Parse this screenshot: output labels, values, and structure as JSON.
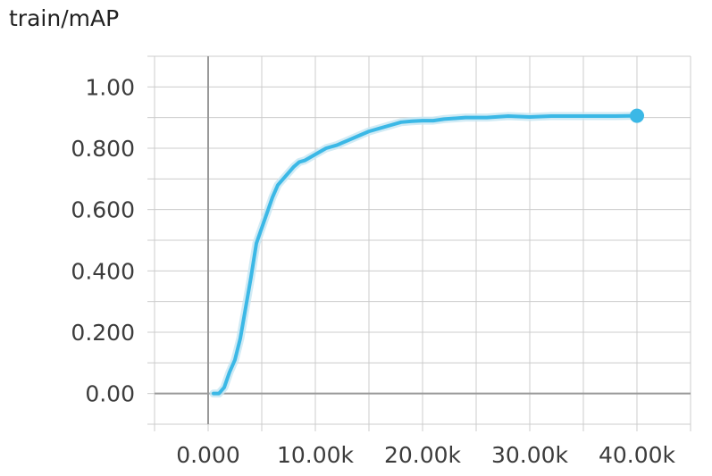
{
  "chart_data": {
    "type": "line",
    "title": "train/mAP",
    "xlabel": "",
    "ylabel": "",
    "xlim": [
      -5000,
      45000
    ],
    "ylim": [
      -0.1,
      1.1
    ],
    "x_ticks": [
      0,
      10000,
      20000,
      30000,
      40000
    ],
    "x_tick_labels": [
      "0.000",
      "10.00k",
      "20.00k",
      "30.00k",
      "40.00k"
    ],
    "y_ticks": [
      0,
      0.2,
      0.4,
      0.6,
      0.8,
      1.0
    ],
    "y_tick_labels": [
      "0.00",
      "0.200",
      "0.400",
      "0.600",
      "0.800",
      "1.00"
    ],
    "grid": true,
    "colors": {
      "line": "#3bb8e6",
      "raw": "#c6e6f2",
      "grid": "#cccccc",
      "axis": "#999999"
    },
    "series": [
      {
        "x": [
          500,
          1000,
          1500,
          2000,
          2500,
          3000,
          3500,
          4000,
          4500,
          5000,
          5500,
          6000,
          6500,
          7000,
          7500,
          8000,
          8500,
          9000,
          10000,
          11000,
          12000,
          13000,
          14000,
          15000,
          16000,
          17000,
          18000,
          19000,
          20000,
          21000,
          22000,
          24000,
          26000,
          28000,
          30000,
          32000,
          34000,
          36000,
          38000,
          40000
        ],
        "y": [
          0.0,
          0.0,
          0.02,
          0.07,
          0.11,
          0.18,
          0.28,
          0.38,
          0.49,
          0.54,
          0.59,
          0.64,
          0.68,
          0.7,
          0.72,
          0.74,
          0.755,
          0.76,
          0.78,
          0.8,
          0.81,
          0.825,
          0.84,
          0.855,
          0.865,
          0.875,
          0.885,
          0.888,
          0.89,
          0.89,
          0.895,
          0.9,
          0.9,
          0.905,
          0.902,
          0.905,
          0.905,
          0.905,
          0.905,
          0.906
        ]
      }
    ]
  }
}
